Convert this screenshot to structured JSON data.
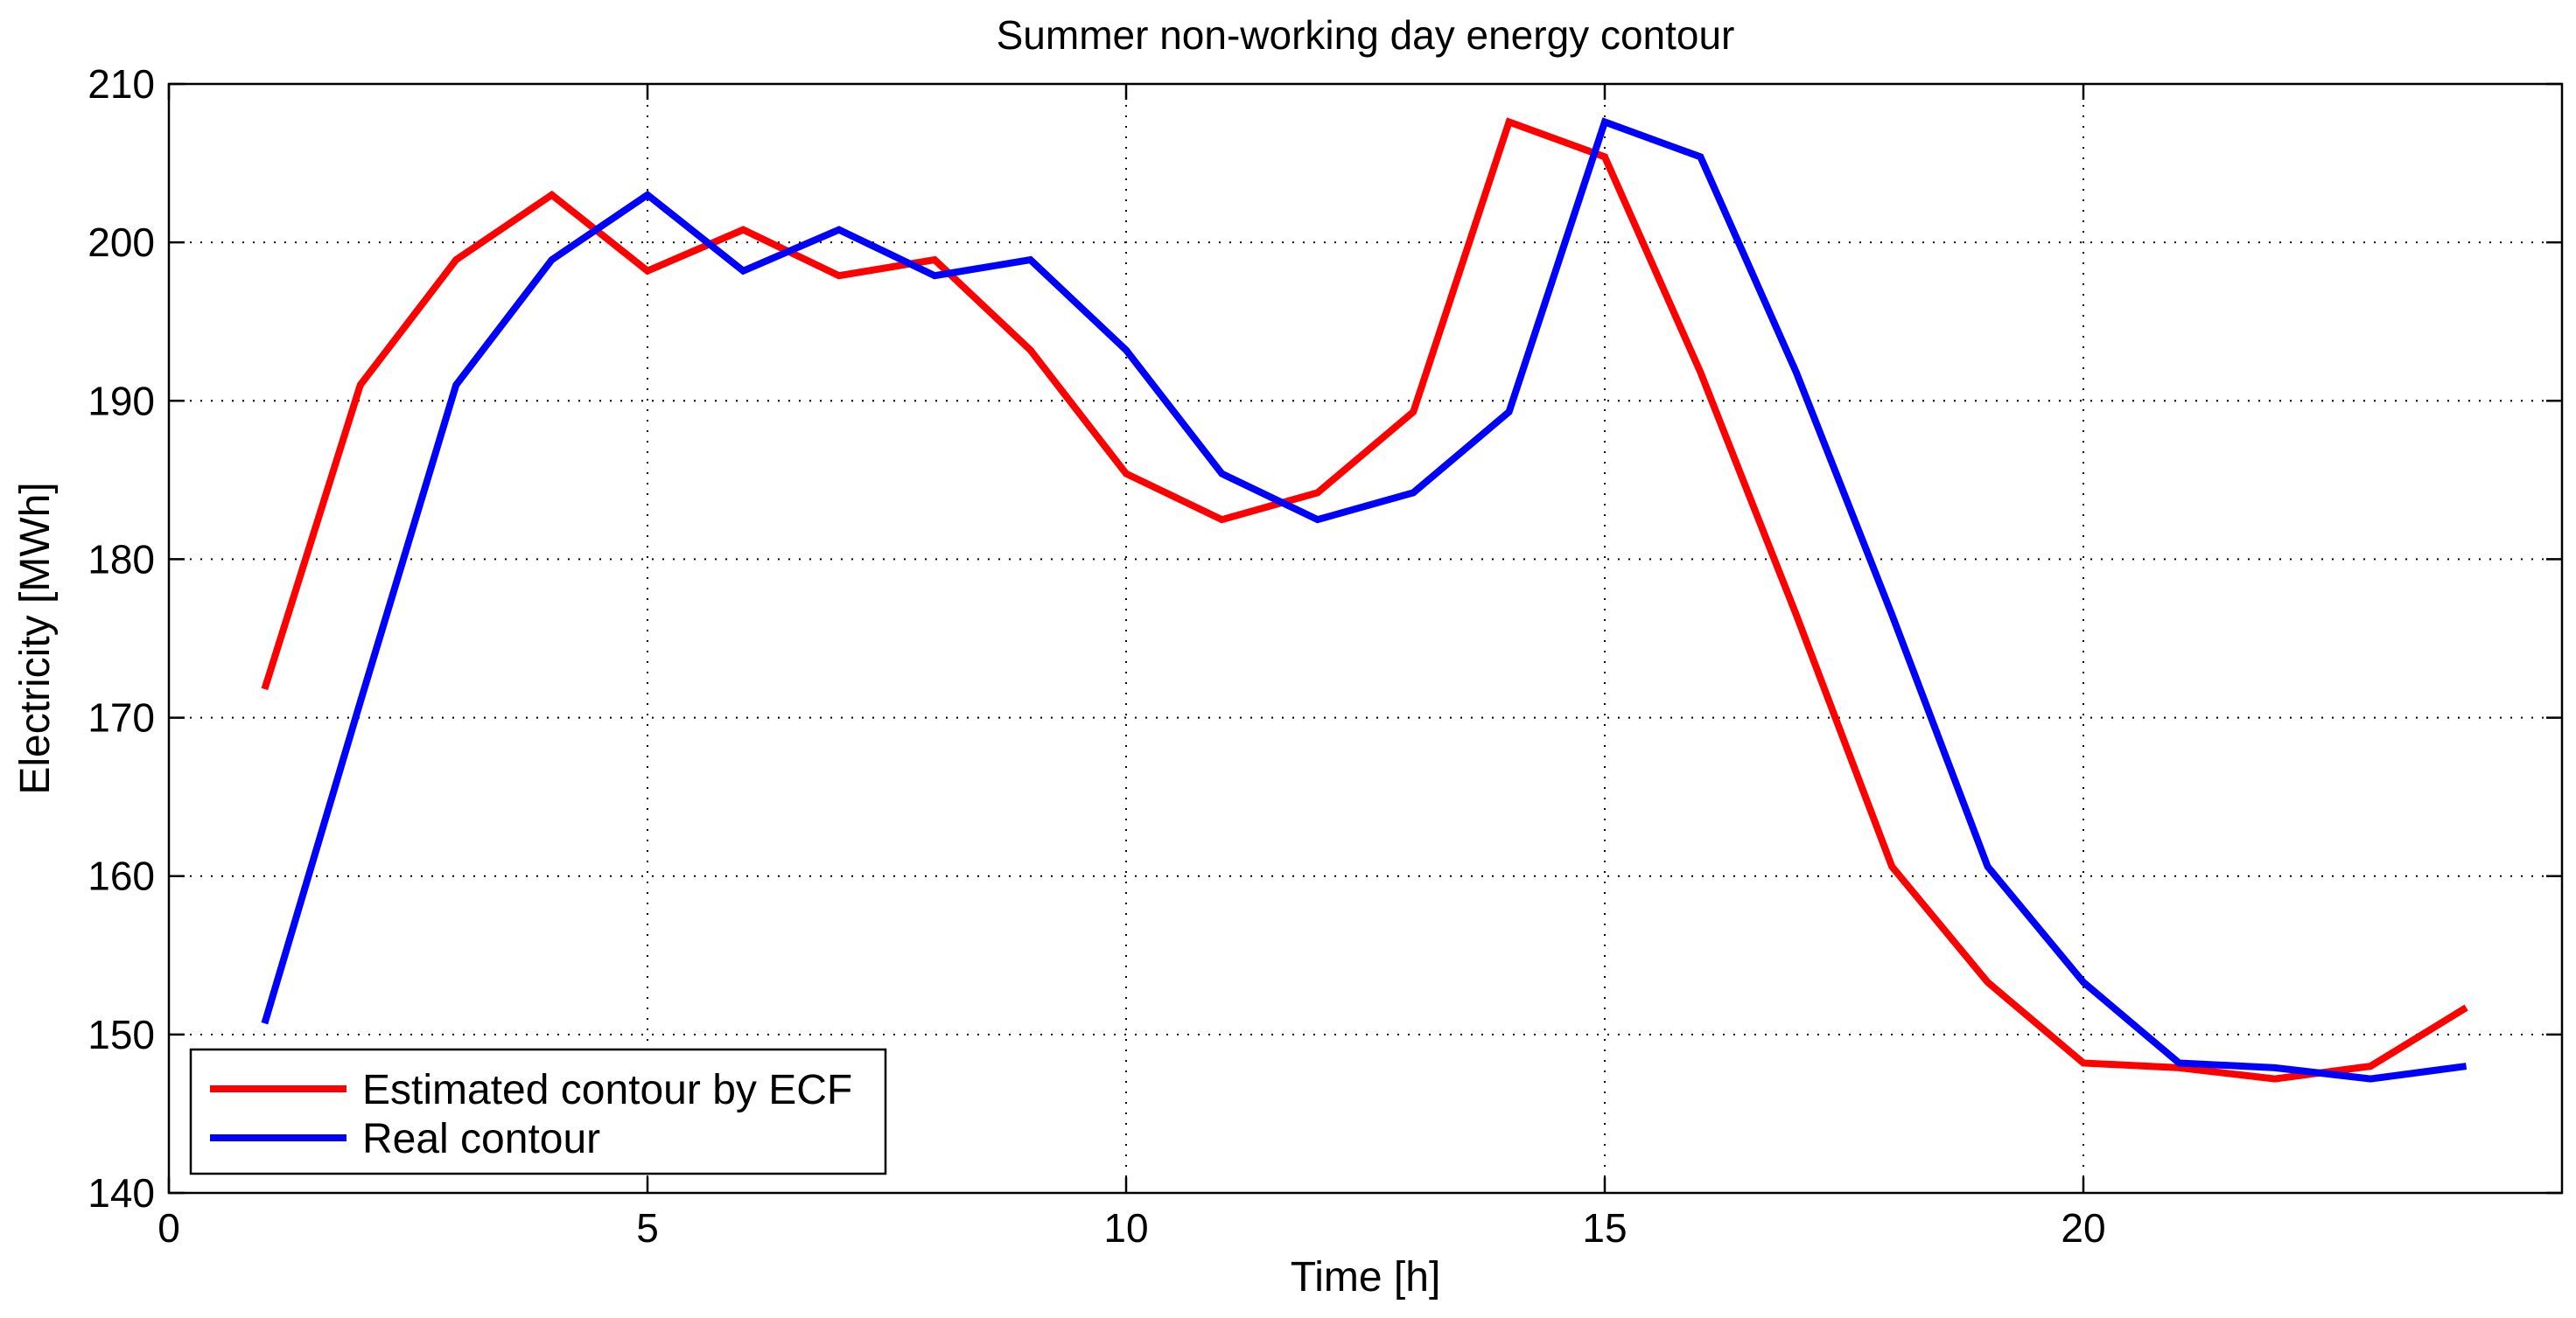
{
  "chart_data": {
    "type": "line",
    "title": "Summer non-working day energy contour",
    "xlabel": "Time [h]",
    "ylabel": "Electricity [MWh]",
    "xlim": [
      0,
      25
    ],
    "ylim": [
      140,
      210
    ],
    "xticks": [
      0,
      5,
      10,
      15,
      20
    ],
    "yticks": [
      140,
      150,
      160,
      170,
      180,
      190,
      200,
      210
    ],
    "grid": true,
    "legend_position": "bottom-left",
    "x": [
      1,
      2,
      3,
      4,
      5,
      6,
      7,
      8,
      9,
      10,
      11,
      12,
      13,
      14,
      15,
      16,
      17,
      18,
      19,
      20,
      21,
      22,
      23,
      24
    ],
    "series": [
      {
        "name": "Estimated contour by ECF",
        "color": "#ff0000",
        "values": [
          171.8,
          191.0,
          198.9,
          203.0,
          198.2,
          200.8,
          197.9,
          198.9,
          193.2,
          185.4,
          182.5,
          184.2,
          189.3,
          207.6,
          205.4,
          191.8,
          176.5,
          160.6,
          153.3,
          148.2,
          147.9,
          147.2,
          148.0,
          151.7
        ]
      },
      {
        "name": "Real contour",
        "color": "#0000ff",
        "values": [
          150.7,
          171.0,
          191.0,
          198.9,
          203.0,
          198.2,
          200.8,
          197.9,
          198.9,
          193.2,
          185.4,
          182.5,
          184.2,
          189.3,
          207.6,
          205.4,
          191.8,
          176.5,
          160.6,
          153.3,
          148.2,
          147.9,
          147.2,
          148.0
        ]
      }
    ]
  }
}
